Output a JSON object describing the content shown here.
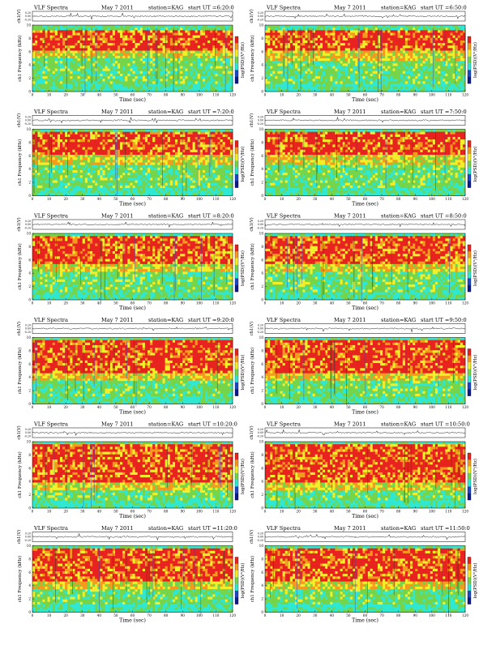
{
  "common": {
    "title_left": "VLF Spectra",
    "date": "May 7 2011",
    "station": "station=KAG",
    "start_prefix": "start  UT",
    "ch_axis_label": "ch1(V)",
    "ch_ticks": [
      "0.20",
      "0.00",
      "-0.20"
    ],
    "freq_axis_label": "ch1 Frequency (kHz)",
    "freq_ticks": [
      "0",
      "2",
      "4",
      "6",
      "8",
      "10"
    ],
    "time_ticks": [
      "0",
      "10",
      "20",
      "30",
      "40",
      "50",
      "60",
      "70",
      "80",
      "90",
      "100",
      "110",
      "120"
    ],
    "time_axis_label": "Time (sec)",
    "colorbar_label": "log(PSD)(V²/Hz)"
  },
  "colors": {
    "red": "#e8221e",
    "orange": "#f49a1c",
    "yellow": "#f2ee2a",
    "green": "#74d44a",
    "cyan": "#2fe8d2",
    "blue": "#1b47c8",
    "dark_blue": "#0c1a8a"
  },
  "chart_data": [
    {
      "type": "heatmap",
      "start_ut": "6:20:0",
      "red_band_khz": [
        6.3,
        9.4
      ],
      "xlim": [
        0,
        120
      ],
      "ylim": [
        0,
        10
      ]
    },
    {
      "type": "heatmap",
      "start_ut": "6:50:0",
      "red_band_khz": [
        6.0,
        9.4
      ],
      "xlim": [
        0,
        120
      ],
      "ylim": [
        0,
        10
      ]
    },
    {
      "type": "heatmap",
      "start_ut": "7:20:0",
      "red_band_khz": [
        6.0,
        9.5
      ],
      "xlim": [
        0,
        120
      ],
      "ylim": [
        0,
        10
      ]
    },
    {
      "type": "heatmap",
      "start_ut": "7:50:0",
      "red_band_khz": [
        6.0,
        9.5
      ],
      "xlim": [
        0,
        120
      ],
      "ylim": [
        0,
        10
      ]
    },
    {
      "type": "heatmap",
      "start_ut": "8:20:0",
      "red_band_khz": [
        5.5,
        9.5
      ],
      "xlim": [
        0,
        120
      ],
      "ylim": [
        0,
        10
      ]
    },
    {
      "type": "heatmap",
      "start_ut": "8:50:0",
      "red_band_khz": [
        5.5,
        9.5
      ],
      "xlim": [
        0,
        120
      ],
      "ylim": [
        0,
        10
      ]
    },
    {
      "type": "heatmap",
      "start_ut": "9:20:0",
      "red_band_khz": [
        4.5,
        9.5
      ],
      "xlim": [
        0,
        120
      ],
      "ylim": [
        0,
        10
      ]
    },
    {
      "type": "heatmap",
      "start_ut": "9:50:0",
      "red_band_khz": [
        4.5,
        9.5
      ],
      "xlim": [
        0,
        120
      ],
      "ylim": [
        0,
        10
      ]
    },
    {
      "type": "heatmap",
      "start_ut": "10:20:0",
      "red_band_khz": [
        4.0,
        9.6
      ],
      "xlim": [
        0,
        120
      ],
      "ylim": [
        0,
        10
      ]
    },
    {
      "type": "heatmap",
      "start_ut": "10:50:0",
      "red_band_khz": [
        4.0,
        9.6
      ],
      "xlim": [
        0,
        120
      ],
      "ylim": [
        0,
        10
      ]
    },
    {
      "type": "heatmap",
      "start_ut": "11:20:0",
      "red_band_khz": [
        4.5,
        9.5
      ],
      "xlim": [
        0,
        120
      ],
      "ylim": [
        0,
        10
      ]
    },
    {
      "type": "heatmap",
      "start_ut": "11:50:0",
      "red_band_khz": [
        4.5,
        9.5
      ],
      "xlim": [
        0,
        120
      ],
      "ylim": [
        0,
        10
      ]
    }
  ]
}
